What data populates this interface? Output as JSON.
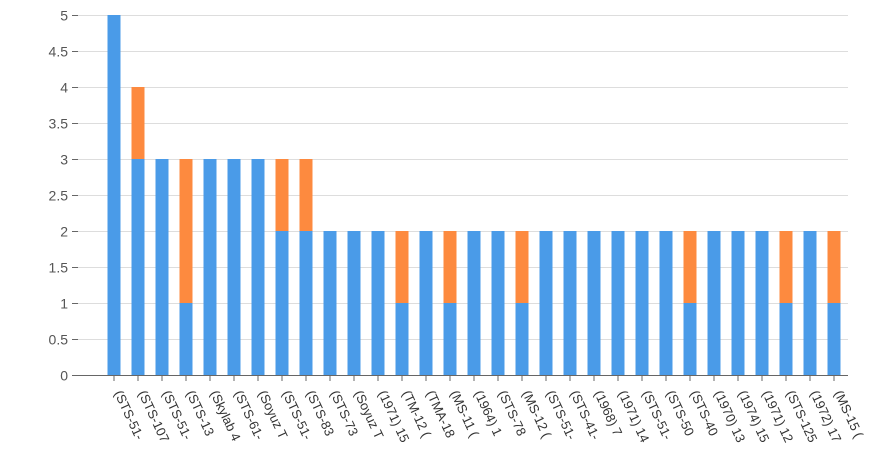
{
  "chart_data": {
    "type": "bar",
    "stacked": true,
    "ylim": [
      0,
      5
    ],
    "yticks": [
      "0",
      "0.5",
      "1",
      "1.5",
      "2",
      "2.5",
      "3",
      "3.5",
      "4",
      "4.5",
      "5"
    ],
    "grid": true,
    "colors": [
      "#4a9be8",
      "#fd8a3f"
    ],
    "categories": [
      "(STS-51-",
      "(STS-107",
      "(STS-51-",
      "(STS-13",
      "(Skylab 4",
      "(STS-61-",
      "(Soyuz T",
      "(STS-51-",
      "(STS-83",
      "(STS-73",
      "(Soyuz T",
      "(1971) 15",
      "(TM-12 (",
      "(TMA-18",
      "(MS-11 (",
      "(1964) 1",
      "(STS-78",
      "(MS-12 (",
      "(STS-51-",
      "(STS-41-",
      "(1968) 7",
      "(1971) 14",
      "(STS-51-",
      "(STS-50",
      "(STS-40",
      "(1970) 13",
      "(1974) 15",
      "(1971) 12",
      "(STS-125",
      "(1972) 17",
      "(MS-15 ("
    ],
    "series": [
      {
        "values": [
          5,
          3,
          3,
          1,
          3,
          3,
          3,
          2,
          2,
          2,
          2,
          2,
          1,
          2,
          1,
          2,
          2,
          1,
          2,
          2,
          2,
          2,
          2,
          2,
          1,
          2,
          2,
          2,
          1,
          2,
          1
        ]
      },
      {
        "values": [
          0,
          1,
          0,
          2,
          0,
          0,
          0,
          1,
          1,
          0,
          0,
          0,
          1,
          0,
          1,
          0,
          0,
          1,
          0,
          0,
          0,
          0,
          0,
          0,
          1,
          0,
          0,
          0,
          1,
          0,
          1
        ]
      }
    ]
  }
}
